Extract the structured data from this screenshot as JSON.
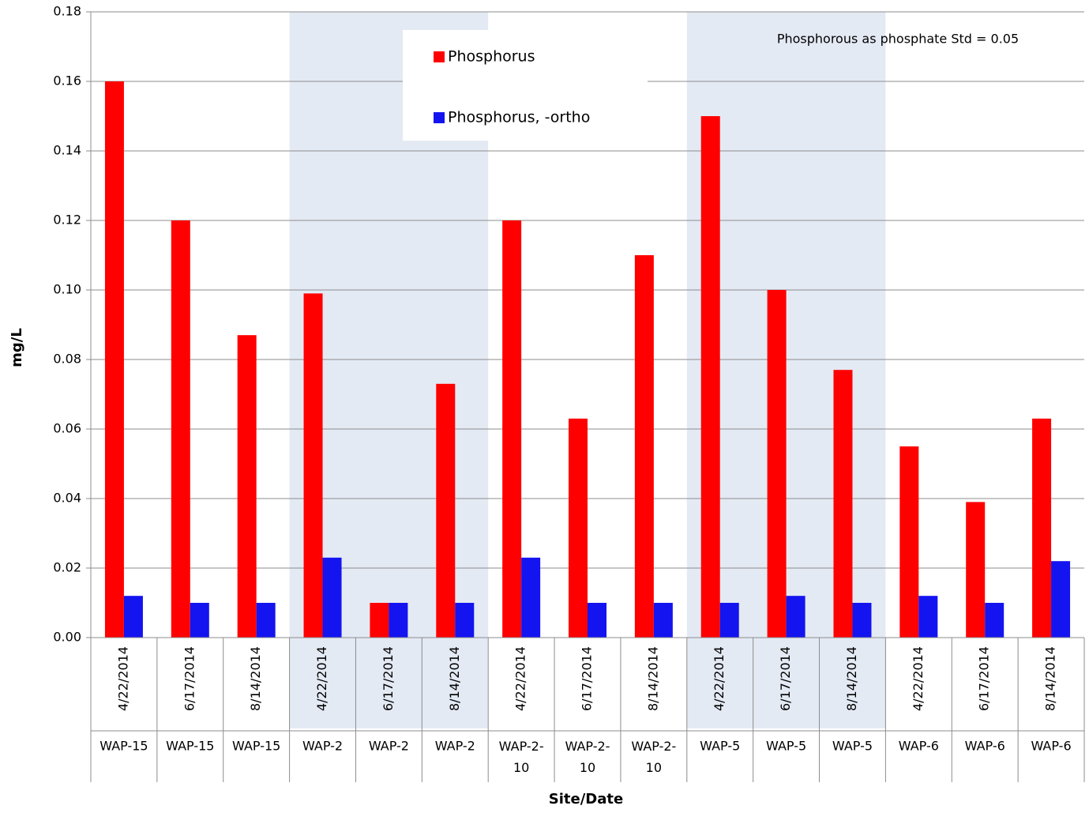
{
  "chart_data": {
    "type": "bar",
    "x_label": "Site/Date",
    "y_label": "mg/L",
    "annotation": "Phosphorous as phosphate Std = 0.05",
    "categories": [
      "4/22/2014",
      "6/17/2014",
      "8/14/2014",
      "4/22/2014",
      "6/17/2014",
      "8/14/2014",
      "4/22/2014",
      "6/17/2014",
      "8/14/2014",
      "4/22/2014",
      "6/17/2014",
      "8/14/2014",
      "4/22/2014",
      "6/17/2014",
      "8/14/2014"
    ],
    "groups": [
      "WAP-15",
      "WAP-15",
      "WAP-15",
      "WAP-2",
      "WAP-2",
      "WAP-2",
      "WAP-2-10",
      "WAP-2-10",
      "WAP-2-10",
      "WAP-5",
      "WAP-5",
      "WAP-5",
      "WAP-6",
      "WAP-6",
      "WAP-6"
    ],
    "series": [
      {
        "name": "Phosphorus",
        "color": "#ff0000",
        "values": [
          0.16,
          0.12,
          0.087,
          0.099,
          0.01,
          0.073,
          0.12,
          0.063,
          0.11,
          0.15,
          0.1,
          0.077,
          0.055,
          0.039,
          0.063
        ]
      },
      {
        "name": "Phosphorus, -ortho",
        "color": "#1414f0",
        "values": [
          0.012,
          0.01,
          0.01,
          0.023,
          0.01,
          0.01,
          0.023,
          0.01,
          0.01,
          0.01,
          0.012,
          0.01,
          0.012,
          0.01,
          0.022
        ]
      }
    ],
    "ylim": [
      0,
      0.18
    ],
    "yticks": [
      {
        "value": 0,
        "label": "0.00"
      },
      0.02,
      0.04,
      0.06,
      0.08,
      {
        "value": 0.1,
        "label": "0.10"
      },
      0.12,
      0.14,
      0.16,
      0.18
    ],
    "grid": true,
    "legend": "top-center"
  }
}
